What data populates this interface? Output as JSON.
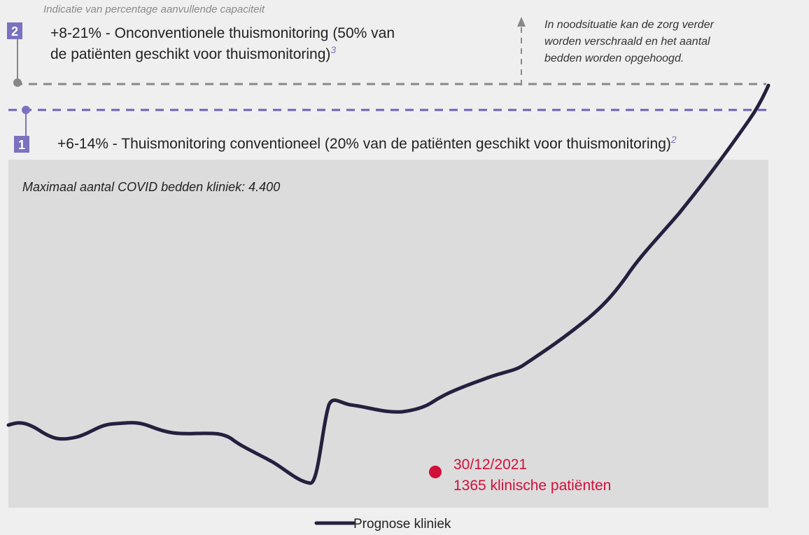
{
  "header": {
    "subtitle": "Indicatie van percentage aanvullende capaciteit"
  },
  "levels": [
    {
      "number": "2",
      "text_line1": "+8-21% - Onconventionele thuismonitoring (50% van",
      "text_line2": "de patiënten geschikt voor thuismonitoring)",
      "footnote": "3"
    },
    {
      "number": "1",
      "text": "+6-14% - Thuismonitoring conventioneel (20% van de patiënten geschikt voor thuismonitoring)",
      "footnote": "2"
    }
  ],
  "emergency_note": [
    "In noodsituatie kan de zorg verder",
    "worden verschraald en het aantal",
    "bedden worden opgehoogd."
  ],
  "capacity_label": "Maximaal aantal COVID bedden kliniek: 4.400",
  "annotation": {
    "date": "30/12/2021",
    "text": "1365 klinische patiënten",
    "color": "#d0103a"
  },
  "legend": {
    "name": "Prognose kliniek",
    "color": "#24203f"
  }
}
